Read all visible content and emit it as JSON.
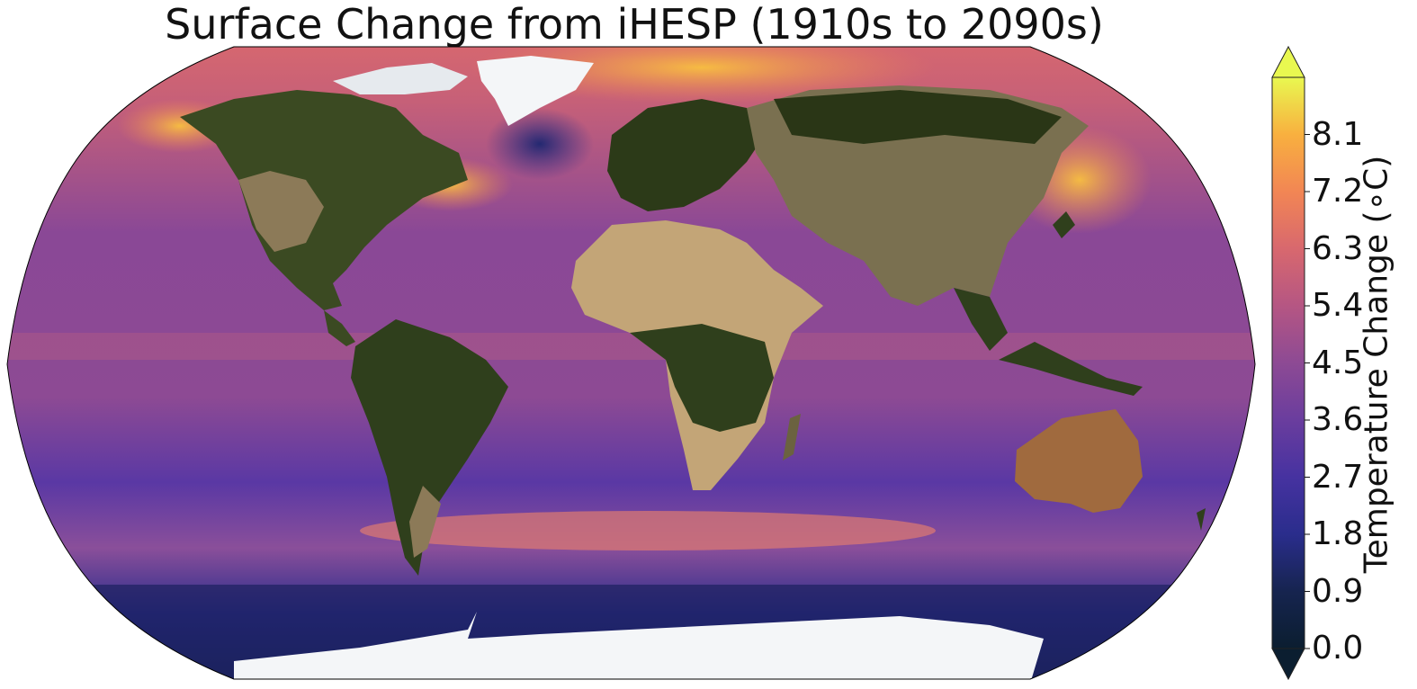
{
  "title": "Surface Change from iHESP (1910s to 2090s)",
  "colorbar": {
    "label": "Temperature Change (∘C)",
    "ticks": [
      "0.0",
      "0.9",
      "1.8",
      "2.7",
      "3.6",
      "4.5",
      "5.4",
      "6.3",
      "7.2",
      "8.1"
    ],
    "tick_values": [
      0.0,
      0.9,
      1.8,
      2.7,
      3.6,
      4.5,
      5.4,
      6.3,
      7.2,
      8.1
    ],
    "range": [
      0.0,
      9.0
    ],
    "extend": "both",
    "colormap": [
      "#0b1e30",
      "#16244f",
      "#2a2d8c",
      "#4632a0",
      "#6a3d9e",
      "#8d4a94",
      "#b55683",
      "#d8686e",
      "#f28654",
      "#f8b03f",
      "#f5d640",
      "#e9f850"
    ]
  },
  "colors": {
    "land": "#3b4a22",
    "desert": "#c3a577",
    "ice": "#f4f6f8",
    "ocean_base": "#5b3aa6"
  }
}
